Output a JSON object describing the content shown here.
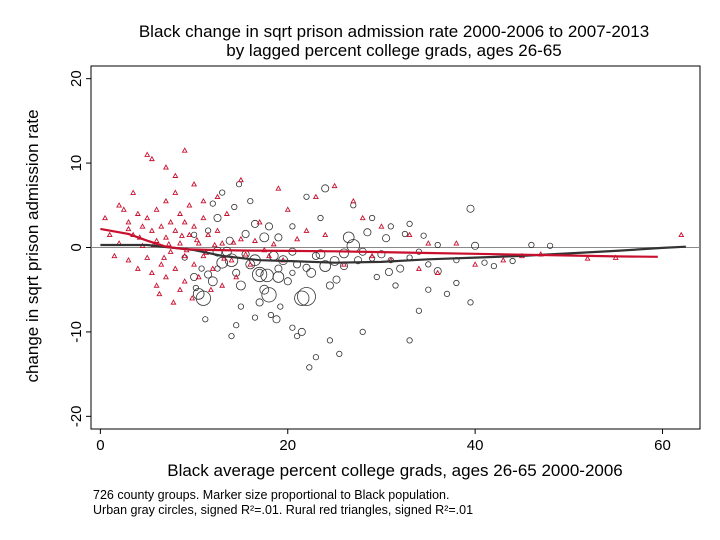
{
  "chart_data": {
    "type": "scatter",
    "title_line1": "Black change in sqrt prison admission rate 2000-2006 to 2007-2013",
    "title_line2": "by lagged percent college grads, ages 26-65",
    "xlabel": "Black average percent college grads, ages 26-65 2000-2006",
    "ylabel": "change in sqrt prison admission rate",
    "xlim": [
      -1,
      64
    ],
    "ylim": [
      -21.5,
      21.5
    ],
    "x_ticks": [
      0,
      20,
      40,
      60
    ],
    "y_ticks": [
      -20,
      -10,
      0,
      10,
      20
    ],
    "x_tick_labels": [
      "0",
      "20",
      "40",
      "60"
    ],
    "y_tick_labels": [
      "-20",
      "-10",
      "0",
      "10",
      "20"
    ],
    "grid": false,
    "reference_line_y": 0,
    "notes": [
      "726 county groups. Marker size proportional to Black population.",
      "Urban gray circles, signed R²=.01. Rural red triangles, signed R²=.01"
    ],
    "colors": {
      "urban": "#333333",
      "rural": "#c8102e",
      "reference": "#888888"
    },
    "fit_lines": [
      {
        "group": "urban",
        "x": [
          0,
          5,
          10,
          13,
          17,
          20,
          25,
          30,
          35,
          40,
          45,
          50,
          55,
          60,
          62.5
        ],
        "y": [
          0.3,
          0.3,
          -0.3,
          -1.0,
          -1.5,
          -1.6,
          -1.8,
          -1.7,
          -1.4,
          -1.2,
          -1.0,
          -0.7,
          -0.4,
          -0.05,
          0.1
        ]
      },
      {
        "group": "rural",
        "x": [
          0,
          3,
          5,
          7,
          9,
          12,
          15,
          20,
          25,
          30,
          35,
          40,
          45,
          50,
          55,
          59.5
        ],
        "y": [
          2.2,
          1.6,
          0.8,
          0.1,
          -0.2,
          -0.3,
          -0.35,
          -0.4,
          -0.45,
          -0.55,
          -0.65,
          -0.75,
          -0.85,
          -0.95,
          -1.05,
          -1.1
        ]
      }
    ],
    "series": [
      {
        "name": "Urban",
        "marker": "circle",
        "points": [
          [
            9,
            -1.2,
            3
          ],
          [
            10,
            -3.5,
            4
          ],
          [
            10.5,
            -5.5,
            6
          ],
          [
            11,
            -6,
            8
          ],
          [
            12,
            -4,
            5
          ],
          [
            12.5,
            -2.5,
            3
          ],
          [
            13,
            -1.8,
            6
          ],
          [
            13.5,
            -0.5,
            5
          ],
          [
            14,
            -1.5,
            7
          ],
          [
            14.5,
            -3,
            4
          ],
          [
            15,
            -4.5,
            5
          ],
          [
            15.5,
            -0.8,
            4
          ],
          [
            16,
            -2,
            5
          ],
          [
            16.5,
            -1.5,
            6
          ],
          [
            17,
            -3,
            4
          ],
          [
            17.5,
            -5,
            5
          ],
          [
            17.8,
            -3.3,
            7
          ],
          [
            18,
            -5.6,
            8
          ],
          [
            18.2,
            -8,
            3
          ],
          [
            18.5,
            -1,
            5
          ],
          [
            19,
            -2.5,
            4
          ],
          [
            19.5,
            -1.5,
            5
          ],
          [
            20,
            -4,
            4
          ],
          [
            20.5,
            -3,
            3
          ],
          [
            21,
            -2,
            4
          ],
          [
            21.5,
            -6,
            8
          ],
          [
            22,
            -5.8,
            10
          ],
          [
            22.5,
            -3,
            5
          ],
          [
            23,
            -1,
            4
          ],
          [
            23.5,
            -0.8,
            5
          ],
          [
            24,
            -2.2,
            6
          ],
          [
            25,
            -1.6,
            5
          ],
          [
            26,
            -0.7,
            5
          ],
          [
            27,
            0.2,
            7
          ],
          [
            28,
            -0.5,
            4
          ],
          [
            29,
            -1.3,
            3
          ],
          [
            30,
            -0.8,
            4
          ],
          [
            31,
            -1.5,
            3
          ],
          [
            32,
            -2.5,
            4
          ],
          [
            33,
            -1.2,
            3
          ],
          [
            34,
            -0.5,
            3
          ],
          [
            35,
            -2,
            3
          ],
          [
            36,
            0.3,
            3
          ],
          [
            38,
            -1.5,
            3
          ],
          [
            40,
            0.2,
            4
          ],
          [
            42,
            -2.2,
            3
          ],
          [
            46,
            0.3,
            3
          ],
          [
            30.8,
            -2.9,
            4
          ],
          [
            19,
            -3.5,
            6
          ],
          [
            17,
            -3.2,
            8
          ],
          [
            21.5,
            -10,
            4
          ],
          [
            20.5,
            -9.5,
            3
          ],
          [
            24.5,
            -11,
            3
          ],
          [
            23,
            -13,
            3
          ],
          [
            28,
            -10,
            3
          ],
          [
            33,
            -11,
            3
          ],
          [
            35,
            -5,
            3
          ],
          [
            37,
            -5.5,
            3
          ],
          [
            39.5,
            -6.5,
            3
          ],
          [
            36,
            -2.8,
            4
          ],
          [
            24.5,
            -4.5,
            4
          ],
          [
            22,
            6,
            3
          ],
          [
            24,
            7,
            4
          ],
          [
            27,
            5,
            3
          ],
          [
            29,
            3.5,
            3
          ],
          [
            31,
            2.5,
            3
          ],
          [
            33,
            2.8,
            3
          ],
          [
            39.5,
            4.6,
            4
          ],
          [
            16,
            5.5,
            3
          ],
          [
            14.3,
            4.8,
            3
          ],
          [
            12.5,
            3.5,
            4
          ],
          [
            11.5,
            2,
            3
          ],
          [
            10,
            1.5,
            3
          ],
          [
            12,
            5.2,
            3
          ],
          [
            13,
            6.5,
            3
          ],
          [
            14.8,
            7.5,
            3
          ],
          [
            15,
            -7,
            3
          ],
          [
            16.5,
            -8.3,
            3
          ],
          [
            17,
            -6.5,
            4
          ],
          [
            18.8,
            -8.5,
            4
          ],
          [
            19.2,
            -7,
            3
          ],
          [
            21,
            -10.5,
            3
          ],
          [
            22.3,
            -14.2,
            3
          ],
          [
            25.5,
            -12.6,
            3
          ],
          [
            14.5,
            -9.2,
            3
          ],
          [
            14,
            -10.5,
            3
          ],
          [
            26,
            -2.2,
            4
          ],
          [
            26.5,
            1.2,
            6
          ],
          [
            28.5,
            1.8,
            4
          ],
          [
            30.5,
            1.1,
            4
          ],
          [
            32.5,
            1.6,
            3
          ],
          [
            34.5,
            1.4,
            3
          ],
          [
            23.5,
            3.5,
            3
          ],
          [
            20.5,
            2.5,
            3
          ],
          [
            19,
            1.2,
            4
          ],
          [
            18,
            2.5,
            4
          ],
          [
            17.5,
            1.2,
            5
          ],
          [
            16.5,
            2.8,
            4
          ],
          [
            15.5,
            1.6,
            4
          ],
          [
            13.8,
            0.8,
            4
          ],
          [
            12.5,
            -0.5,
            5
          ],
          [
            11.5,
            -3.2,
            4
          ],
          [
            10.8,
            -2.5,
            3
          ],
          [
            11.2,
            -8.5,
            3
          ],
          [
            10.2,
            -4.8,
            3
          ],
          [
            20.5,
            -0.5,
            4
          ],
          [
            22,
            -2.4,
            4
          ],
          [
            25.2,
            -3.8,
            4
          ],
          [
            27.5,
            -1.5,
            4
          ],
          [
            29.5,
            -3.5,
            3
          ],
          [
            31.5,
            -4.5,
            3
          ],
          [
            34,
            -7.5,
            3
          ],
          [
            38,
            -4.2,
            3
          ],
          [
            41,
            -1.8,
            3
          ],
          [
            44,
            -1.6,
            3
          ],
          [
            48,
            0.2,
            3
          ]
        ]
      },
      {
        "name": "Rural",
        "marker": "triangle",
        "points": [
          [
            0.5,
            3.5
          ],
          [
            1,
            1.5
          ],
          [
            1.5,
            -1
          ],
          [
            2,
            0.5
          ],
          [
            2.5,
            4.5
          ],
          [
            3,
            3
          ],
          [
            3,
            -1.5
          ],
          [
            3.5,
            1.5
          ],
          [
            4,
            4
          ],
          [
            4,
            -2.5
          ],
          [
            4.5,
            2.5
          ],
          [
            4.5,
            0.2
          ],
          [
            5,
            3.5
          ],
          [
            5,
            -1.2
          ],
          [
            5.5,
            2
          ],
          [
            5.5,
            -3
          ],
          [
            6,
            4.5
          ],
          [
            6,
            0.8
          ],
          [
            6,
            -4.5
          ],
          [
            6.5,
            2.5
          ],
          [
            6.5,
            -2
          ],
          [
            7,
            5.5
          ],
          [
            7,
            1.2
          ],
          [
            7,
            -3.5
          ],
          [
            7.5,
            3
          ],
          [
            7.5,
            -0.5
          ],
          [
            8,
            6.5
          ],
          [
            8,
            2
          ],
          [
            8,
            -2.5
          ],
          [
            8.5,
            4
          ],
          [
            8.5,
            0.5
          ],
          [
            8.5,
            -5
          ],
          [
            9,
            3
          ],
          [
            9,
            -1
          ],
          [
            9,
            -4
          ],
          [
            9.5,
            5
          ],
          [
            9.5,
            1.5
          ],
          [
            10,
            2.5
          ],
          [
            10,
            -2
          ],
          [
            10.5,
            0.5
          ],
          [
            10.5,
            -3.5
          ],
          [
            11,
            3.5
          ],
          [
            11,
            -1
          ],
          [
            11.5,
            1.5
          ],
          [
            12,
            -2.5
          ],
          [
            12.5,
            2
          ],
          [
            13,
            0.5
          ],
          [
            13.5,
            4
          ],
          [
            14,
            -1.5
          ],
          [
            15,
            1
          ],
          [
            16,
            -2
          ],
          [
            17,
            3
          ],
          [
            18,
            -1
          ],
          [
            20,
            4.5
          ],
          [
            22,
            2
          ],
          [
            25,
            7.3
          ],
          [
            27,
            5.5
          ],
          [
            30,
            2.5
          ],
          [
            35,
            0.5
          ],
          [
            45,
            -1
          ],
          [
            52,
            -1.3
          ],
          [
            62,
            1.5
          ],
          [
            5,
            11
          ],
          [
            5.5,
            10.5
          ],
          [
            9,
            11.5
          ],
          [
            7,
            9.5
          ],
          [
            2,
            5
          ],
          [
            3.5,
            6.5
          ],
          [
            8,
            8.5
          ],
          [
            10,
            7.5
          ],
          [
            11,
            5.5
          ],
          [
            12.5,
            6
          ],
          [
            15,
            8
          ],
          [
            19,
            7
          ],
          [
            23,
            6
          ],
          [
            28,
            3.5
          ],
          [
            33,
            1.5
          ],
          [
            38,
            0.5
          ],
          [
            43,
            -1.5
          ],
          [
            47,
            -0.8
          ],
          [
            55,
            -1.2
          ],
          [
            6.3,
            -5.5
          ],
          [
            7.8,
            -6.5
          ],
          [
            9.8,
            -6
          ],
          [
            11.8,
            -5
          ],
          [
            13,
            -4.5
          ],
          [
            14.5,
            -3.5
          ],
          [
            3,
            2.2
          ],
          [
            4.2,
            1.2
          ],
          [
            5.7,
            0.3
          ],
          [
            6.8,
            -1.2
          ],
          [
            7.3,
            0.4
          ],
          [
            8.7,
            1.4
          ],
          [
            9.2,
            -0.3
          ],
          [
            10.3,
            0.9
          ],
          [
            11.3,
            -0.6
          ],
          [
            12.2,
            0.3
          ],
          [
            13.2,
            -1.3
          ],
          [
            14.2,
            0.6
          ],
          [
            15.5,
            -0.8
          ],
          [
            16.5,
            0.8
          ],
          [
            17.5,
            -0.3
          ],
          [
            18.5,
            0.4
          ],
          [
            19.5,
            -1.5
          ],
          [
            21,
            1
          ],
          [
            24,
            1.5
          ],
          [
            26,
            -2
          ],
          [
            29,
            -1
          ],
          [
            31,
            -1.5
          ],
          [
            34,
            -2.5
          ],
          [
            36,
            -3
          ],
          [
            40,
            -2
          ]
        ]
      }
    ]
  }
}
